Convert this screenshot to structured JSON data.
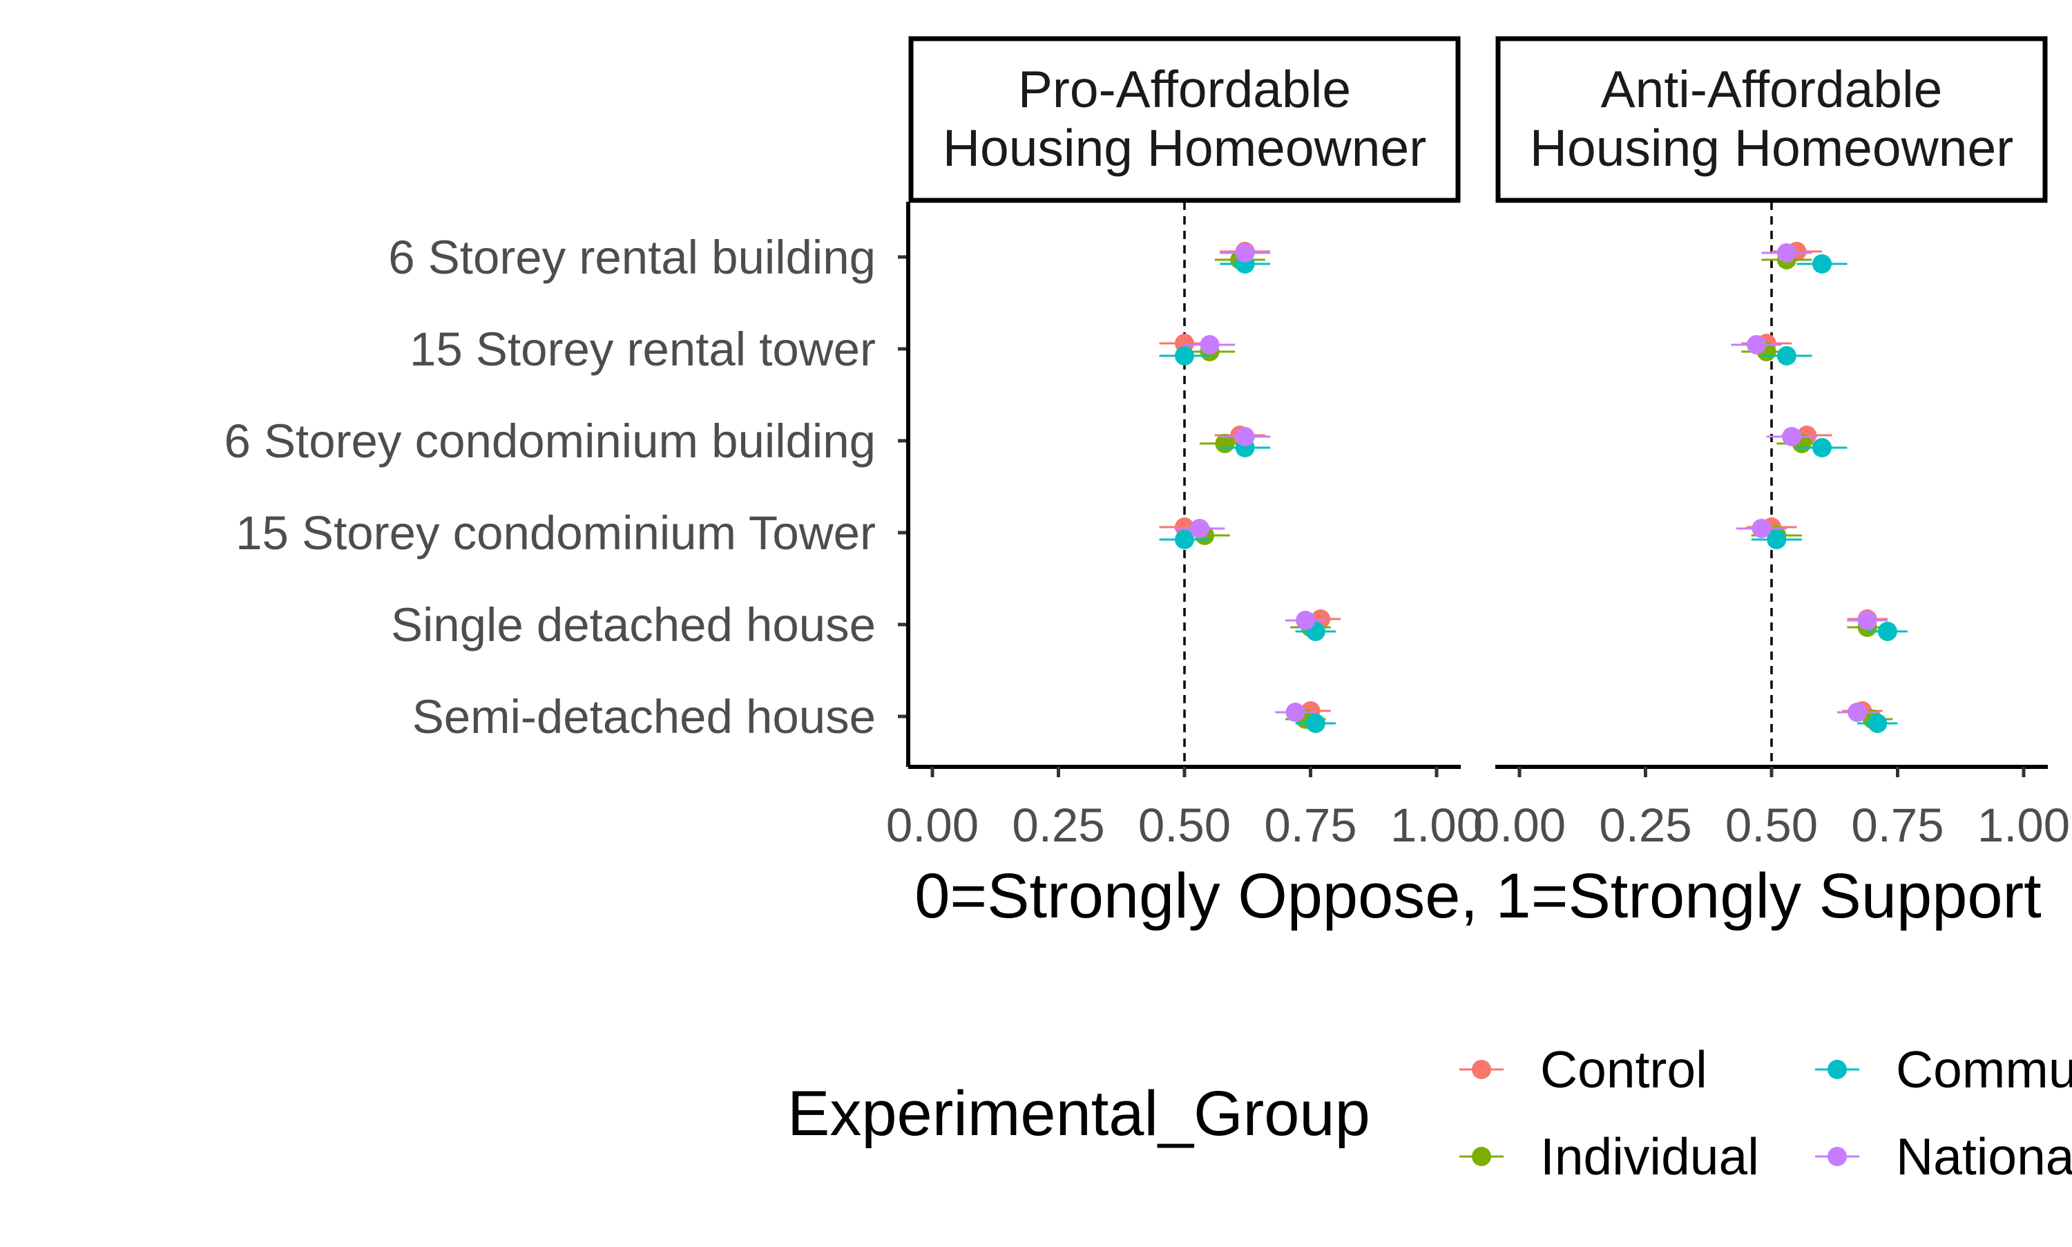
{
  "chart_data": {
    "type": "scatter",
    "xlabel": "0=Strongly Oppose, 1=Strongly Support",
    "ylabel": "",
    "xlim": [
      0,
      1
    ],
    "x_ticks": [
      "0.00",
      "0.25",
      "0.50",
      "0.75",
      "1.00"
    ],
    "x_tick_values": [
      0,
      0.25,
      0.5,
      0.75,
      1
    ],
    "reference_line": 0.5,
    "grid": false,
    "categories": [
      "6 Storey rental building",
      "15 Storey rental tower",
      "6 Storey condominium building",
      "15 Storey condominium Tower",
      "Single detached house",
      "Semi-detached house"
    ],
    "panels": [
      {
        "title_lines": [
          "Pro-Affordable",
          "Housing Homeowner"
        ],
        "series": [
          {
            "name": "Control",
            "values": [
              0.62,
              0.5,
              0.61,
              0.5,
              0.77,
              0.75
            ],
            "ci": [
              [
                0.57,
                0.67
              ],
              [
                0.45,
                0.55
              ],
              [
                0.56,
                0.66
              ],
              [
                0.45,
                0.55
              ],
              [
                0.73,
                0.81
              ],
              [
                0.71,
                0.79
              ]
            ]
          },
          {
            "name": "Individual",
            "values": [
              0.61,
              0.55,
              0.58,
              0.54,
              0.75,
              0.74
            ],
            "ci": [
              [
                0.56,
                0.66
              ],
              [
                0.5,
                0.6
              ],
              [
                0.53,
                0.63
              ],
              [
                0.49,
                0.59
              ],
              [
                0.71,
                0.79
              ],
              [
                0.7,
                0.78
              ]
            ]
          },
          {
            "name": "Community",
            "values": [
              0.62,
              0.5,
              0.62,
              0.5,
              0.76,
              0.76
            ],
            "ci": [
              [
                0.57,
                0.67
              ],
              [
                0.45,
                0.55
              ],
              [
                0.57,
                0.67
              ],
              [
                0.45,
                0.55
              ],
              [
                0.72,
                0.8
              ],
              [
                0.72,
                0.8
              ]
            ]
          },
          {
            "name": "National",
            "values": [
              0.62,
              0.55,
              0.62,
              0.53,
              0.74,
              0.72
            ],
            "ci": [
              [
                0.57,
                0.67
              ],
              [
                0.5,
                0.6
              ],
              [
                0.57,
                0.67
              ],
              [
                0.48,
                0.58
              ],
              [
                0.7,
                0.78
              ],
              [
                0.68,
                0.76
              ]
            ]
          }
        ]
      },
      {
        "title_lines": [
          "Anti-Affordable",
          "Housing Homeowner"
        ],
        "series": [
          {
            "name": "Control",
            "values": [
              0.55,
              0.49,
              0.57,
              0.5,
              0.69,
              0.68
            ],
            "ci": [
              [
                0.5,
                0.6
              ],
              [
                0.44,
                0.54
              ],
              [
                0.52,
                0.62
              ],
              [
                0.45,
                0.55
              ],
              [
                0.65,
                0.73
              ],
              [
                0.64,
                0.72
              ]
            ]
          },
          {
            "name": "Individual",
            "values": [
              0.53,
              0.49,
              0.56,
              0.51,
              0.69,
              0.7
            ],
            "ci": [
              [
                0.48,
                0.58
              ],
              [
                0.44,
                0.54
              ],
              [
                0.51,
                0.61
              ],
              [
                0.46,
                0.56
              ],
              [
                0.65,
                0.73
              ],
              [
                0.66,
                0.74
              ]
            ]
          },
          {
            "name": "Community",
            "values": [
              0.6,
              0.53,
              0.6,
              0.51,
              0.73,
              0.71
            ],
            "ci": [
              [
                0.55,
                0.65
              ],
              [
                0.48,
                0.58
              ],
              [
                0.55,
                0.65
              ],
              [
                0.46,
                0.56
              ],
              [
                0.69,
                0.77
              ],
              [
                0.67,
                0.75
              ]
            ]
          },
          {
            "name": "National",
            "values": [
              0.53,
              0.47,
              0.54,
              0.48,
              0.69,
              0.67
            ],
            "ci": [
              [
                0.48,
                0.58
              ],
              [
                0.42,
                0.52
              ],
              [
                0.49,
                0.59
              ],
              [
                0.43,
                0.53
              ],
              [
                0.65,
                0.73
              ],
              [
                0.63,
                0.71
              ]
            ]
          }
        ]
      }
    ],
    "legend": {
      "title": "Experimental_Group",
      "position": "bottom",
      "entries": [
        "Control",
        "Individual",
        "Community",
        "National"
      ]
    },
    "colors": {
      "Control": "#F8766D",
      "Individual": "#7CAE00",
      "Community": "#00BFC4",
      "National": "#C77CFF"
    }
  }
}
